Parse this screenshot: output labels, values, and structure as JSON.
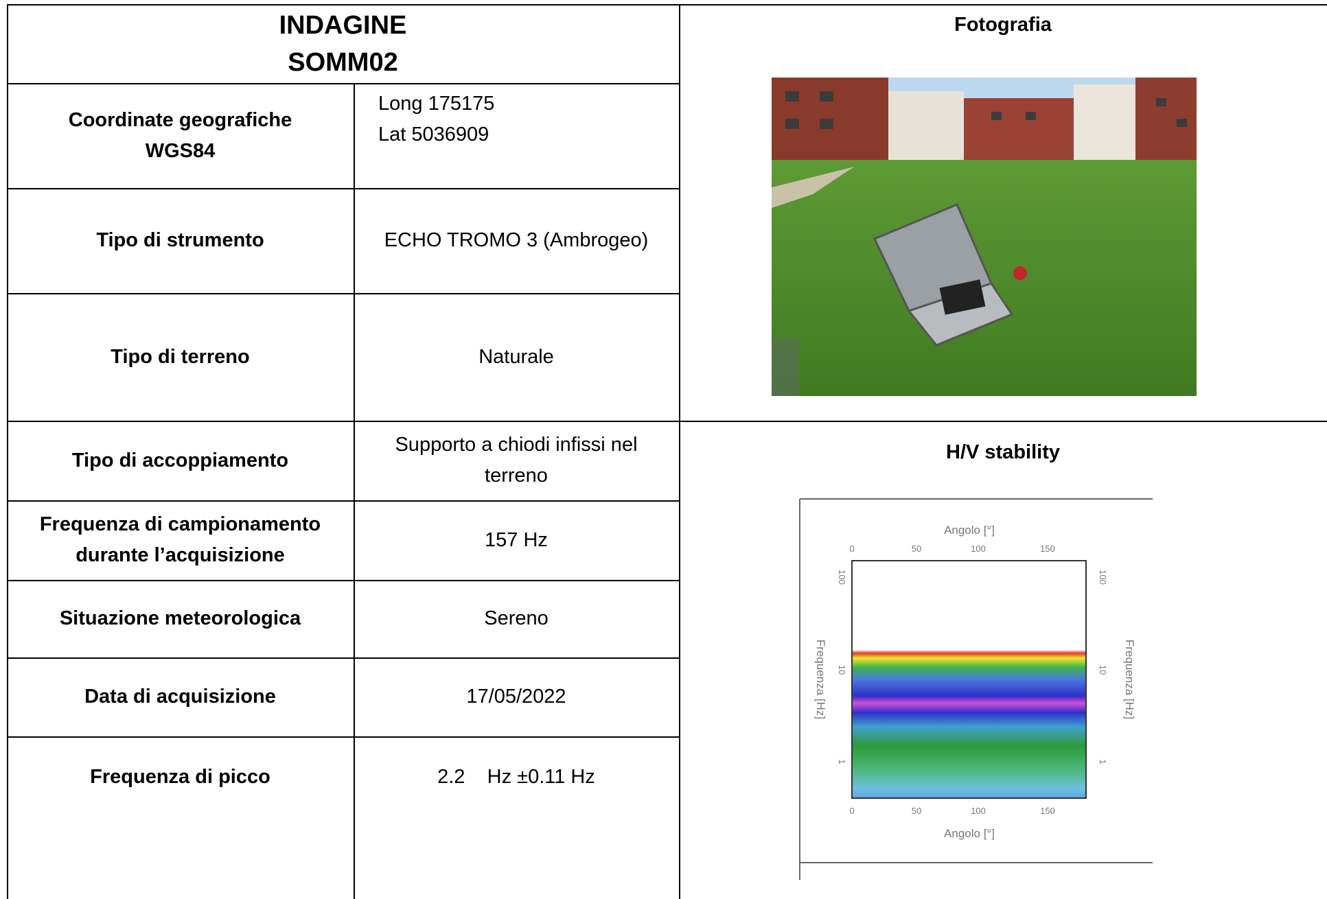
{
  "header": {
    "title": [
      "INDAGINE",
      "SOMM02"
    ]
  },
  "rows": [
    {
      "label": [
        "Coordinate geografiche",
        "WGS84"
      ],
      "value": [
        "Long 175175",
        "Lat 5036909"
      ]
    },
    {
      "label": [
        "Tipo di strumento"
      ],
      "value": [
        "ECHO TROMO 3 (Ambrogeo)"
      ]
    },
    {
      "label": [
        "Tipo di terreno"
      ],
      "value": [
        "Naturale"
      ]
    },
    {
      "label": [
        "Tipo di accoppiamento"
      ],
      "value": [
        "Supporto a chiodi infissi nel",
        "terreno"
      ]
    },
    {
      "label": [
        "Frequenza di campionamento",
        "durante l’acquisizione"
      ],
      "value": [
        "157 Hz"
      ]
    },
    {
      "label": [
        "Situazione meteorologica"
      ],
      "value": [
        "Sereno"
      ]
    },
    {
      "label": [
        "Data di acquisizione"
      ],
      "value": [
        "17/05/2022"
      ]
    },
    {
      "label": [
        "Frequenza di picco"
      ],
      "value": [
        "2.2    Hz ±0.11 Hz"
      ]
    }
  ],
  "photo": {
    "title": "Fotografia"
  },
  "stability": {
    "title": "H/V stability",
    "plot": {
      "x_label": "Angolo [°]",
      "y_label": "Frequenza [Hz]",
      "x_ticks": [
        "0",
        "50",
        "100",
        "150"
      ],
      "y_ticks": [
        "100",
        "10",
        "1"
      ]
    }
  }
}
